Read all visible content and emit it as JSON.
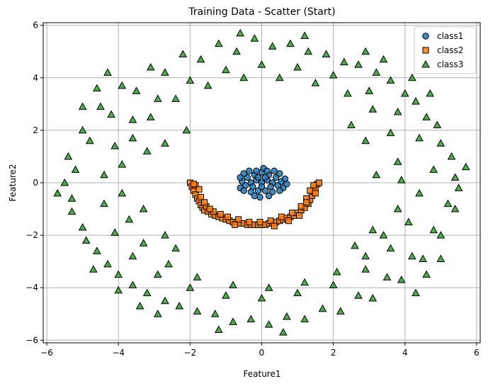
{
  "chart_data": {
    "type": "scatter",
    "title": "Training Data - Scatter (Start)",
    "xlabel": "Feature1",
    "ylabel": "Feature2",
    "xlim": [
      -6.1,
      6.1
    ],
    "ylim": [
      -6.1,
      6.1
    ],
    "xticks": [
      -6,
      -4,
      -2,
      0,
      2,
      4,
      6
    ],
    "yticks": [
      -6,
      -4,
      -2,
      0,
      2,
      4,
      6
    ],
    "grid": true,
    "legend_position": "top-right",
    "series": [
      {
        "name": "class1",
        "marker": "circle",
        "color": "#1f77b4",
        "points": [
          [
            0.0,
            0.0
          ],
          [
            0.15,
            0.1
          ],
          [
            -0.15,
            0.1
          ],
          [
            0.3,
            0.0
          ],
          [
            -0.3,
            0.0
          ],
          [
            0.2,
            0.3
          ],
          [
            -0.2,
            0.3
          ],
          [
            0.0,
            0.4
          ],
          [
            0.1,
            -0.3
          ],
          [
            -0.1,
            -0.3
          ],
          [
            0.4,
            0.2
          ],
          [
            -0.4,
            0.2
          ],
          [
            0.45,
            -0.1
          ],
          [
            -0.45,
            -0.1
          ],
          [
            0.3,
            -0.35
          ],
          [
            -0.3,
            -0.35
          ],
          [
            0.55,
            0.05
          ],
          [
            -0.55,
            0.05
          ],
          [
            0.6,
            -0.2
          ],
          [
            -0.6,
            -0.2
          ],
          [
            0.05,
            0.55
          ],
          [
            -0.05,
            -0.55
          ],
          [
            0.35,
            0.45
          ],
          [
            -0.35,
            0.45
          ],
          [
            0.5,
            0.35
          ],
          [
            -0.5,
            0.35
          ],
          [
            0.65,
            0.15
          ],
          [
            -0.6,
            0.2
          ],
          [
            0.25,
            -0.15
          ],
          [
            -0.25,
            -0.15
          ],
          [
            0.1,
            0.2
          ],
          [
            -0.1,
            0.2
          ],
          [
            0.2,
            -0.5
          ],
          [
            -0.2,
            -0.5
          ],
          [
            0.7,
            -0.05
          ],
          [
            0.0,
            -0.15
          ],
          [
            0.5,
            -0.3
          ],
          [
            -0.5,
            -0.3
          ],
          [
            0.15,
            0.45
          ],
          [
            -0.15,
            0.45
          ]
        ]
      },
      {
        "name": "class2",
        "marker": "square",
        "color": "#ff7f0e",
        "points": [
          [
            -2.0,
            0.0
          ],
          [
            -1.95,
            -0.15
          ],
          [
            -1.9,
            -0.3
          ],
          [
            -1.85,
            -0.45
          ],
          [
            -1.8,
            -0.6
          ],
          [
            -1.75,
            -0.7
          ],
          [
            -1.7,
            -0.85
          ],
          [
            -1.65,
            -0.95
          ],
          [
            -1.6,
            -1.05
          ],
          [
            -1.5,
            -1.1
          ],
          [
            -1.4,
            -1.2
          ],
          [
            -1.3,
            -1.25
          ],
          [
            -1.2,
            -1.3
          ],
          [
            -1.1,
            -1.35
          ],
          [
            -1.0,
            -1.4
          ],
          [
            -0.9,
            -1.45
          ],
          [
            -0.8,
            -1.5
          ],
          [
            -0.7,
            -1.5
          ],
          [
            -0.6,
            -1.55
          ],
          [
            -0.5,
            -1.55
          ],
          [
            -0.4,
            -1.6
          ],
          [
            -0.3,
            -1.6
          ],
          [
            -0.2,
            -1.6
          ],
          [
            -0.1,
            -1.6
          ],
          [
            0.0,
            -1.6
          ],
          [
            0.1,
            -1.6
          ],
          [
            0.2,
            -1.55
          ],
          [
            0.3,
            -1.55
          ],
          [
            0.4,
            -1.5
          ],
          [
            0.5,
            -1.45
          ],
          [
            0.6,
            -1.4
          ],
          [
            0.7,
            -1.35
          ],
          [
            0.8,
            -1.3
          ],
          [
            0.9,
            -1.25
          ],
          [
            1.0,
            -1.15
          ],
          [
            1.1,
            -1.05
          ],
          [
            1.2,
            -0.95
          ],
          [
            1.3,
            -0.8
          ],
          [
            1.35,
            -0.65
          ],
          [
            1.4,
            -0.5
          ],
          [
            1.45,
            -0.35
          ],
          [
            1.5,
            -0.2
          ],
          [
            1.55,
            -0.05
          ],
          [
            1.6,
            0.0
          ],
          [
            1.45,
            -0.1
          ],
          [
            -1.85,
            -0.1
          ],
          [
            -1.7,
            -0.55
          ],
          [
            -1.55,
            -0.9
          ],
          [
            -1.35,
            -1.1
          ],
          [
            -1.15,
            -1.2
          ],
          [
            -0.95,
            -1.3
          ],
          [
            -0.65,
            -1.4
          ],
          [
            -0.35,
            -1.5
          ],
          [
            -0.05,
            -1.5
          ],
          [
            0.25,
            -1.45
          ],
          [
            0.55,
            -1.3
          ],
          [
            0.85,
            -1.15
          ],
          [
            1.1,
            -0.9
          ],
          [
            1.25,
            -0.6
          ],
          [
            1.35,
            -0.3
          ],
          [
            -1.75,
            -0.25
          ],
          [
            -1.6,
            -0.75
          ],
          [
            -1.45,
            -1.0
          ],
          [
            -0.75,
            -1.6
          ],
          [
            0.35,
            -1.65
          ],
          [
            0.75,
            -1.45
          ],
          [
            1.05,
            -1.25
          ],
          [
            1.25,
            -0.75
          ],
          [
            1.5,
            -0.4
          ],
          [
            -1.9,
            -0.05
          ]
        ]
      },
      {
        "name": "class3",
        "marker": "triangle",
        "color": "#2ca02c",
        "points": [
          [
            5.4,
            0.2
          ],
          [
            5.0,
            1.5
          ],
          [
            4.6,
            2.5
          ],
          [
            4.0,
            3.4
          ],
          [
            3.2,
            4.2
          ],
          [
            2.3,
            4.6
          ],
          [
            1.3,
            5.0
          ],
          [
            0.3,
            5.2
          ],
          [
            -0.7,
            5.0
          ],
          [
            -1.7,
            4.7
          ],
          [
            -2.7,
            4.2
          ],
          [
            -3.5,
            3.5
          ],
          [
            -4.2,
            2.6
          ],
          [
            -4.8,
            1.6
          ],
          [
            -5.2,
            0.5
          ],
          [
            -5.3,
            -0.6
          ],
          [
            -5.0,
            -1.7
          ],
          [
            -4.6,
            -2.6
          ],
          [
            -4.0,
            -3.5
          ],
          [
            -3.2,
            -4.2
          ],
          [
            -2.3,
            -4.7
          ],
          [
            -1.3,
            -5.0
          ],
          [
            -0.3,
            -5.2
          ],
          [
            0.7,
            -5.1
          ],
          [
            1.7,
            -4.8
          ],
          [
            2.7,
            -4.3
          ],
          [
            3.5,
            -3.6
          ],
          [
            4.2,
            -2.8
          ],
          [
            4.8,
            -1.8
          ],
          [
            5.2,
            -0.8
          ],
          [
            4.8,
            0.5
          ],
          [
            4.4,
            1.7
          ],
          [
            3.8,
            2.7
          ],
          [
            3.0,
            3.5
          ],
          [
            2.0,
            4.1
          ],
          [
            1.0,
            4.4
          ],
          [
            0.0,
            4.5
          ],
          [
            -1.0,
            4.3
          ],
          [
            -2.0,
            3.9
          ],
          [
            -2.9,
            3.2
          ],
          [
            -3.6,
            2.4
          ],
          [
            -4.1,
            1.4
          ],
          [
            -4.4,
            0.3
          ],
          [
            -4.4,
            -0.8
          ],
          [
            -4.1,
            -1.9
          ],
          [
            -3.6,
            -2.8
          ],
          [
            -2.9,
            -3.5
          ],
          [
            -2.0,
            -4.0
          ],
          [
            -1.0,
            -4.3
          ],
          [
            0.0,
            -4.4
          ],
          [
            1.0,
            -4.2
          ],
          [
            2.0,
            -3.9
          ],
          [
            2.9,
            -3.3
          ],
          [
            3.6,
            -2.5
          ],
          [
            4.1,
            -1.5
          ],
          [
            4.4,
            -0.4
          ],
          [
            5.5,
            -0.2
          ],
          [
            5.3,
            1.0
          ],
          [
            4.9,
            2.2
          ],
          [
            4.3,
            3.1
          ],
          [
            3.6,
            3.9
          ],
          [
            2.7,
            4.5
          ],
          [
            1.8,
            4.9
          ],
          [
            0.8,
            5.3
          ],
          [
            -0.2,
            5.5
          ],
          [
            -1.2,
            5.3
          ],
          [
            -2.2,
            4.9
          ],
          [
            -3.1,
            4.4
          ],
          [
            -3.9,
            3.7
          ],
          [
            -4.5,
            2.9
          ],
          [
            -5.0,
            2.0
          ],
          [
            -5.4,
            1.0
          ],
          [
            -5.5,
            0.0
          ],
          [
            -5.3,
            -1.1
          ],
          [
            -4.9,
            -2.2
          ],
          [
            -4.3,
            -3.1
          ],
          [
            -3.6,
            -3.9
          ],
          [
            -2.7,
            -4.5
          ],
          [
            -1.8,
            -4.9
          ],
          [
            -0.8,
            -5.3
          ],
          [
            0.2,
            -5.4
          ],
          [
            1.2,
            -5.2
          ],
          [
            2.2,
            -4.9
          ],
          [
            3.1,
            -4.4
          ],
          [
            3.9,
            -3.7
          ],
          [
            4.5,
            -2.9
          ],
          [
            5.0,
            -2.0
          ],
          [
            5.4,
            -1.0
          ],
          [
            3.8,
            0.8
          ],
          [
            3.6,
            1.9
          ],
          [
            3.1,
            2.8
          ],
          [
            2.4,
            3.4
          ],
          [
            1.5,
            3.8
          ],
          [
            0.5,
            4.0
          ],
          [
            -0.5,
            4.0
          ],
          [
            -1.5,
            3.7
          ],
          [
            -2.4,
            3.2
          ],
          [
            -3.1,
            2.5
          ],
          [
            -3.6,
            1.7
          ],
          [
            -3.9,
            0.7
          ],
          [
            -3.9,
            -0.4
          ],
          [
            -3.7,
            -1.4
          ],
          [
            -3.3,
            -2.3
          ],
          [
            -2.6,
            -3.1
          ],
          [
            -1.8,
            -3.6
          ],
          [
            -0.8,
            -3.9
          ],
          [
            0.2,
            -4.0
          ],
          [
            1.2,
            -3.8
          ],
          [
            2.1,
            -3.4
          ],
          [
            2.9,
            -2.8
          ],
          [
            3.4,
            -2.0
          ],
          [
            3.8,
            -1.0
          ],
          [
            3.9,
            0.1
          ],
          [
            -2.1,
            2.0
          ],
          [
            -3.2,
            1.2
          ],
          [
            -2.7,
            -2.0
          ],
          [
            2.5,
            2.2
          ],
          [
            3.1,
            -1.8
          ],
          [
            -2.4,
            -2.5
          ],
          [
            -2.7,
            1.5
          ],
          [
            2.6,
            -2.4
          ],
          [
            2.9,
            1.6
          ],
          [
            -3.3,
            -1.0
          ],
          [
            3.2,
            0.3
          ],
          [
            4.7,
            3.4
          ],
          [
            -4.7,
            -3.3
          ],
          [
            4.2,
            4.0
          ],
          [
            -4.0,
            -4.1
          ],
          [
            -4.6,
            3.6
          ],
          [
            4.6,
            -3.5
          ],
          [
            1.2,
            5.6
          ],
          [
            -1.2,
            -5.6
          ],
          [
            5.7,
            0.6
          ],
          [
            -5.7,
            -0.4
          ],
          [
            0.6,
            -5.7
          ],
          [
            -0.6,
            5.7
          ],
          [
            2.9,
            5.0
          ],
          [
            -2.9,
            -5.0
          ],
          [
            5.0,
            -2.9
          ],
          [
            -5.0,
            2.9
          ],
          [
            4.3,
            -4.2
          ],
          [
            -4.3,
            4.2
          ],
          [
            3.4,
            4.7
          ],
          [
            -3.4,
            -4.7
          ]
        ]
      }
    ]
  }
}
